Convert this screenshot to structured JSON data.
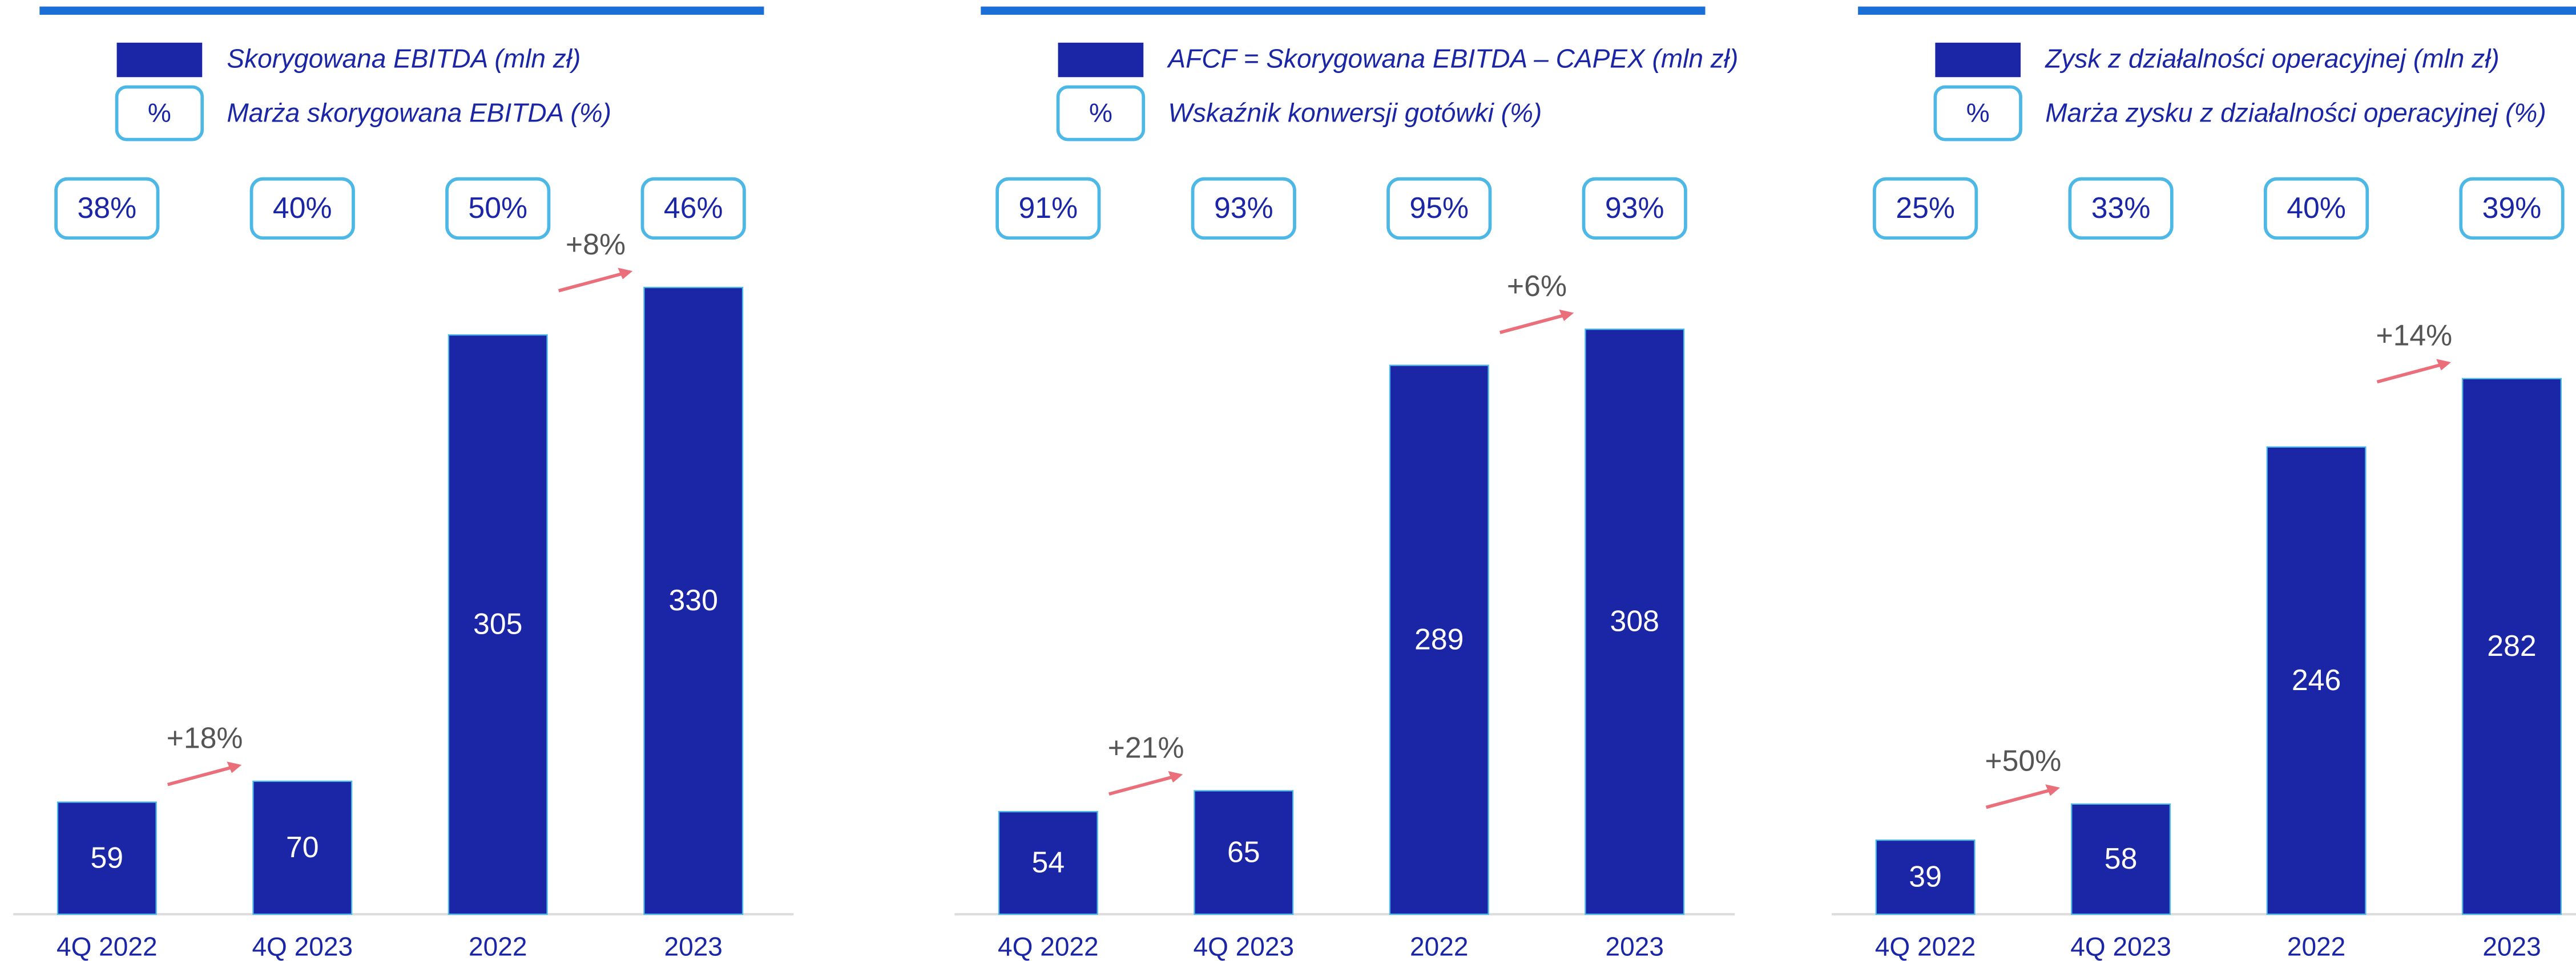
{
  "chart_data": [
    {
      "type": "bar",
      "color": "#1b26a6",
      "legend": [
        {
          "name": "Skorygowana EBITDA (mln zł)"
        },
        {
          "symbol": "%",
          "name": "Marża skorygowana EBITDA (%)"
        }
      ],
      "margins": {
        "values": [
          38,
          40,
          50,
          46
        ],
        "value_labels": [
          "38%",
          "40%",
          "50%",
          "46%"
        ]
      },
      "categories": [
        "4Q 2022",
        "4Q 2023",
        "2022",
        "2023"
      ],
      "values": [
        59,
        70,
        305,
        330
      ],
      "annotations": [
        "+18%",
        "+8%"
      ],
      "ylim": [
        0,
        350
      ]
    },
    {
      "type": "bar",
      "color": "#1b26a6",
      "legend": [
        {
          "name": "AFCF = Skorygowana EBITDA – CAPEX (mln zł)"
        },
        {
          "symbol": "%",
          "name": "Wskaźnik konwersji gotówki (%)"
        }
      ],
      "margins": {
        "values": [
          91,
          93,
          95,
          93
        ],
        "value_labels": [
          "91%",
          "93%",
          "95%",
          "93%"
        ]
      },
      "categories": [
        "4Q 2022",
        "4Q 2023",
        "2022",
        "2023"
      ],
      "values": [
        54,
        65,
        289,
        308
      ],
      "annotations": [
        "+21%",
        "+6%"
      ],
      "ylim": [
        0,
        350
      ]
    },
    {
      "type": "bar",
      "color": "#1b26a6",
      "legend": [
        {
          "name": "Zysk z działalności operacyjnej (mln zł)"
        },
        {
          "symbol": "%",
          "name": "Marża zysku z działalności operacyjnej (%)"
        }
      ],
      "margins": {
        "values": [
          25,
          33,
          40,
          39
        ],
        "value_labels": [
          "25%",
          "33%",
          "40%",
          "39%"
        ]
      },
      "categories": [
        "4Q 2022",
        "4Q 2023",
        "2022",
        "2023"
      ],
      "values": [
        39,
        58,
        246,
        282
      ],
      "annotations": [
        "+50%",
        "+14%"
      ],
      "ylim": [
        0,
        350
      ]
    }
  ]
}
